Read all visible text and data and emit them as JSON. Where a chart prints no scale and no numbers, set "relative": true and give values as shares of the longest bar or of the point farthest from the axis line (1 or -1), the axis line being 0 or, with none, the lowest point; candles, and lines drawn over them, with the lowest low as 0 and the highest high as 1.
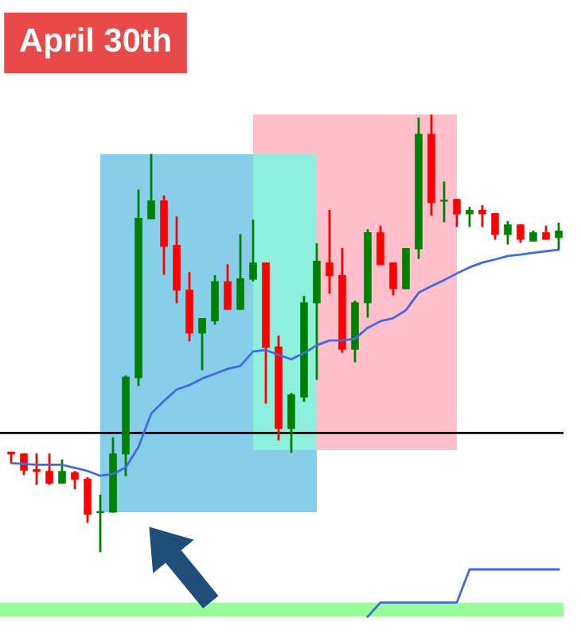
{
  "chart_data": [
    {
      "type": "candlestick",
      "title": "April 30th",
      "relative": true,
      "categories": [
        null,
        null,
        null,
        null,
        null,
        null,
        null,
        null,
        null,
        null,
        null,
        null,
        null,
        null,
        null,
        null,
        null,
        null,
        null,
        null,
        null,
        null,
        null,
        null,
        null,
        null,
        null,
        null,
        null,
        null,
        null,
        null,
        null,
        null,
        null,
        null,
        null,
        null,
        null,
        null,
        null,
        null,
        null,
        null
      ],
      "ohlc": [
        [
          0.23,
          0.23,
          0.206,
          0.224
        ],
        [
          0.226,
          0.226,
          0.177,
          0.187
        ],
        [
          0.19,
          0.226,
          0.154,
          0.184
        ],
        [
          0.186,
          0.226,
          0.154,
          0.157
        ],
        [
          0.157,
          0.212,
          0.157,
          0.186
        ],
        [
          0.183,
          0.186,
          0.144,
          0.166
        ],
        [
          0.168,
          0.172,
          0.068,
          0.086
        ],
        [
          0.09,
          0.132,
          0.0,
          0.092
        ],
        [
          0.091,
          0.263,
          0.091,
          0.226
        ],
        [
          0.224,
          0.404,
          0.174,
          0.401
        ],
        [
          0.398,
          0.829,
          0.38,
          0.764
        ],
        [
          0.761,
          0.91,
          0.761,
          0.804
        ],
        [
          0.804,
          0.815,
          0.634,
          0.698
        ],
        [
          0.702,
          0.767,
          0.569,
          0.598
        ],
        [
          0.6,
          0.64,
          0.482,
          0.5
        ],
        [
          0.5,
          0.535,
          0.416,
          0.535
        ],
        [
          0.528,
          0.633,
          0.52,
          0.619
        ],
        [
          0.619,
          0.658,
          0.554,
          0.554
        ],
        [
          0.554,
          0.727,
          0.554,
          0.626
        ],
        [
          0.623,
          0.76,
          0.619,
          0.662
        ],
        [
          0.662,
          0.662,
          0.34,
          0.467
        ],
        [
          0.47,
          0.495,
          0.256,
          0.282
        ],
        [
          0.282,
          0.364,
          0.227,
          0.361
        ],
        [
          0.354,
          0.586,
          0.344,
          0.571
        ],
        [
          0.569,
          0.706,
          0.394,
          0.666
        ],
        [
          0.662,
          0.782,
          0.591,
          0.631
        ],
        [
          0.633,
          0.695,
          0.456,
          0.463
        ],
        [
          0.463,
          0.575,
          0.434,
          0.571
        ],
        [
          0.569,
          0.738,
          0.536,
          0.731
        ],
        [
          0.731,
          0.746,
          0.656,
          0.656
        ],
        [
          0.662,
          0.662,
          0.587,
          0.601
        ],
        [
          0.601,
          0.695,
          0.601,
          0.695
        ],
        [
          0.692,
          0.993,
          0.67,
          0.956
        ],
        [
          0.956,
          1.0,
          0.769,
          0.798
        ],
        [
          0.801,
          0.847,
          0.754,
          0.805
        ],
        [
          0.807,
          0.807,
          0.743,
          0.772
        ],
        [
          0.772,
          0.789,
          0.743,
          0.782
        ],
        [
          0.782,
          0.793,
          0.743,
          0.772
        ],
        [
          0.775,
          0.775,
          0.714,
          0.725
        ],
        [
          0.725,
          0.757,
          0.703,
          0.749
        ],
        [
          0.749,
          0.749,
          0.707,
          0.714
        ],
        [
          0.71,
          0.735,
          0.71,
          0.731
        ],
        [
          0.731,
          0.746,
          0.714,
          0.714
        ],
        [
          0.718,
          0.753,
          0.692,
          0.735
        ]
      ],
      "colors": [
        "#ff0000",
        "#ff0000",
        "#ff0000",
        "#ff0000",
        "#008000",
        "#ff0000",
        "#ff0000",
        "#008000",
        "#008000",
        "#008000",
        "#008000",
        "#008000",
        "#ff0000",
        "#ff0000",
        "#ff0000",
        "#008000",
        "#008000",
        "#ff0000",
        "#008000",
        "#008000",
        "#ff0000",
        "#ff0000",
        "#008000",
        "#008000",
        "#008000",
        "#ff0000",
        "#ff0000",
        "#008000",
        "#008000",
        "#ff0000",
        "#ff0000",
        "#008000",
        "#008000",
        "#ff0000",
        "#008000",
        "#ff0000",
        "#008000",
        "#ff0000",
        "#ff0000",
        "#008000",
        "#ff0000",
        "#008000",
        "#ff0000",
        "#008000"
      ],
      "series": [
        {
          "type": "line",
          "color": "#4169e1",
          "values": [
            0.204,
            null,
            0.2,
            null,
            0.2,
            null,
            0.186,
            0.175,
            0.179,
            0.194,
            0.241,
            0.317,
            0.346,
            0.372,
            0.382,
            0.397,
            0.408,
            0.419,
            0.426,
            0.459,
            0.462,
            0.451,
            0.441,
            0.455,
            0.473,
            0.484,
            0.484,
            0.488,
            0.513,
            0.528,
            0.535,
            0.553,
            0.593,
            0.608,
            0.622,
            0.637,
            0.651,
            0.662,
            0.669,
            0.677,
            0.68,
            0.684,
            0.688,
            0.691
          ]
        }
      ],
      "ref_lines": [
        {
          "axis": "y",
          "value": 0.273,
          "color": "#000000"
        }
      ]
    },
    {
      "type": "line",
      "relative": true,
      "categories": [
        null,
        null,
        null,
        null,
        null,
        null,
        null,
        null,
        null,
        null,
        null,
        null,
        null,
        null,
        null,
        null,
        null,
        null,
        null,
        null,
        null,
        null,
        null,
        null,
        null,
        null,
        null,
        null,
        null,
        null,
        null,
        null,
        null,
        null,
        null,
        null,
        null,
        null,
        null,
        null,
        null,
        null,
        null,
        null
      ],
      "series": [
        {
          "color": "#4169e1",
          "values": [
            null,
            null,
            null,
            null,
            null,
            null,
            null,
            null,
            null,
            null,
            null,
            null,
            null,
            null,
            null,
            null,
            null,
            null,
            null,
            null,
            null,
            null,
            null,
            null,
            null,
            null,
            null,
            null,
            0,
            0.3,
            0.3,
            0.3,
            0.3,
            0.3,
            0.3,
            0.3,
            1,
            1,
            1,
            1,
            1,
            1,
            1,
            1
          ]
        }
      ]
    }
  ]
}
